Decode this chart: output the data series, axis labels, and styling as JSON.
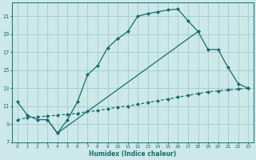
{
  "xlabel": "Humidex (Indice chaleur)",
  "background_color": "#cce8e8",
  "grid_color": "#a0cccc",
  "line_color": "#1a6b6b",
  "xlim": [
    -0.5,
    23.5
  ],
  "ylim": [
    7,
    22.5
  ],
  "yticks": [
    7,
    9,
    11,
    13,
    15,
    17,
    19,
    21
  ],
  "xticks": [
    0,
    1,
    2,
    3,
    4,
    5,
    6,
    7,
    8,
    9,
    10,
    11,
    12,
    13,
    14,
    15,
    16,
    17,
    18,
    19,
    20,
    21,
    22,
    23
  ],
  "line1_x": [
    0,
    1,
    2,
    3,
    4,
    5,
    6,
    7,
    8,
    9,
    10,
    11,
    12,
    13,
    14,
    15,
    16,
    17,
    18
  ],
  "line1_y": [
    11.5,
    10.0,
    9.5,
    9.5,
    8.0,
    9.5,
    11.5,
    14.5,
    15.5,
    17.5,
    18.5,
    19.3,
    21.0,
    21.3,
    21.5,
    21.7,
    21.8,
    20.5,
    19.3
  ],
  "line2_x": [
    3,
    4,
    18,
    19,
    20,
    21,
    22,
    23
  ],
  "line2_y": [
    9.5,
    8.0,
    19.3,
    17.3,
    17.3,
    15.3,
    13.5,
    13.0
  ],
  "line3_x": [
    0,
    1,
    2,
    3,
    4,
    5,
    6,
    7,
    8,
    9,
    10,
    11,
    12,
    13,
    14,
    15,
    16,
    17,
    18,
    19,
    20,
    21,
    22,
    23
  ],
  "line3_y": [
    9.5,
    9.7,
    9.8,
    9.9,
    10.0,
    10.1,
    10.2,
    10.4,
    10.5,
    10.7,
    10.9,
    11.0,
    11.2,
    11.4,
    11.6,
    11.8,
    12.0,
    12.2,
    12.4,
    12.6,
    12.7,
    12.8,
    12.9,
    13.0
  ]
}
